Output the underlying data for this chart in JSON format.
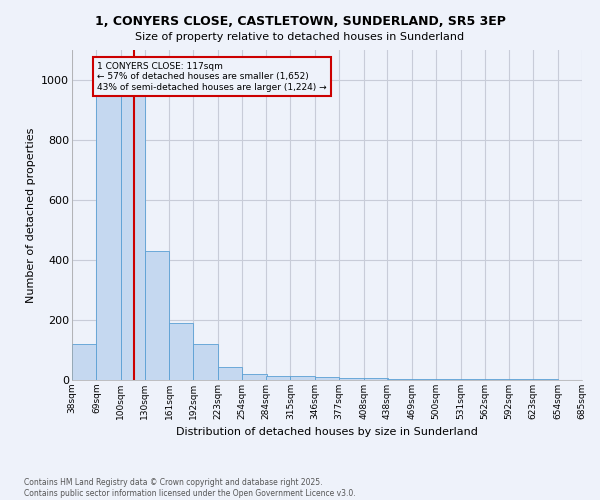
{
  "title_line1": "1, CONYERS CLOSE, CASTLETOWN, SUNDERLAND, SR5 3EP",
  "title_line2": "Size of property relative to detached houses in Sunderland",
  "xlabel": "Distribution of detached houses by size in Sunderland",
  "ylabel": "Number of detached properties",
  "bar_color": "#c5d8f0",
  "bar_edge_color": "#5a9fd4",
  "background_color": "#eef2fa",
  "grid_color": "#d8dce8",
  "red_line_x": 117,
  "annotation_title": "1 CONYERS CLOSE: 117sqm",
  "annotation_line2": "← 57% of detached houses are smaller (1,652)",
  "annotation_line3": "43% of semi-detached houses are larger (1,224) →",
  "annotation_box_color": "#cc0000",
  "footer_line1": "Contains HM Land Registry data © Crown copyright and database right 2025.",
  "footer_line2": "Contains public sector information licensed under the Open Government Licence v3.0.",
  "bin_edges": [
    38,
    69,
    100,
    130,
    161,
    192,
    223,
    254,
    284,
    315,
    346,
    377,
    408,
    438,
    469,
    500,
    531,
    562,
    592,
    623,
    654
  ],
  "bar_heights": [
    120,
    960,
    960,
    430,
    190,
    120,
    45,
    20,
    15,
    12,
    10,
    8,
    6,
    5,
    4,
    3,
    3,
    2,
    2,
    2
  ],
  "ylim": [
    0,
    1100
  ],
  "yticks": [
    0,
    200,
    400,
    600,
    800,
    1000
  ],
  "figsize": [
    6.0,
    5.0
  ],
  "dpi": 100
}
